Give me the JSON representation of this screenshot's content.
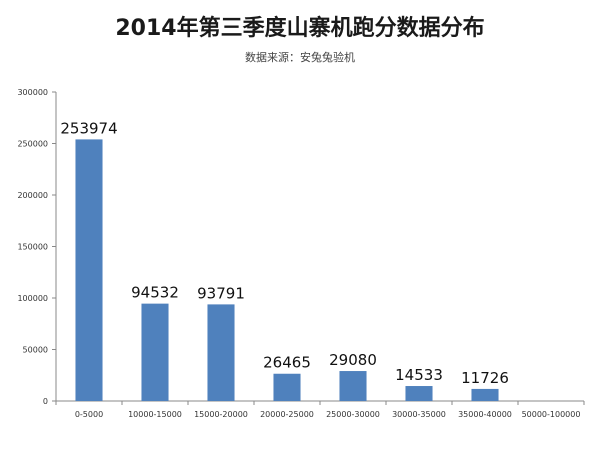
{
  "title": "2014年第三季度山寨机跑分数据分布",
  "subtitle": "数据来源：安兔兔验机",
  "chart_data": {
    "type": "bar",
    "title": "2014年第三季度山寨机跑分数据分布",
    "subtitle": "数据来源：安兔兔验机",
    "categories": [
      "0-5000",
      "10000-15000",
      "15000-20000",
      "20000-25000",
      "25000-30000",
      "30000-35000",
      "35000-40000",
      "50000-100000"
    ],
    "values": [
      253974,
      94532,
      93791,
      26465,
      29080,
      14533,
      11726,
      0
    ],
    "data_labels": [
      "253974",
      "94532",
      "93791",
      "26465",
      "29080",
      "14533",
      "11726",
      ""
    ],
    "y_ticks": [
      "0",
      "50000",
      "100000",
      "150000",
      "200000",
      "250000",
      "300000"
    ],
    "ylim": [
      0,
      300000
    ],
    "grid": false,
    "legend": "none",
    "bar_color": "#4f81bd",
    "axis_color": "#888888"
  }
}
